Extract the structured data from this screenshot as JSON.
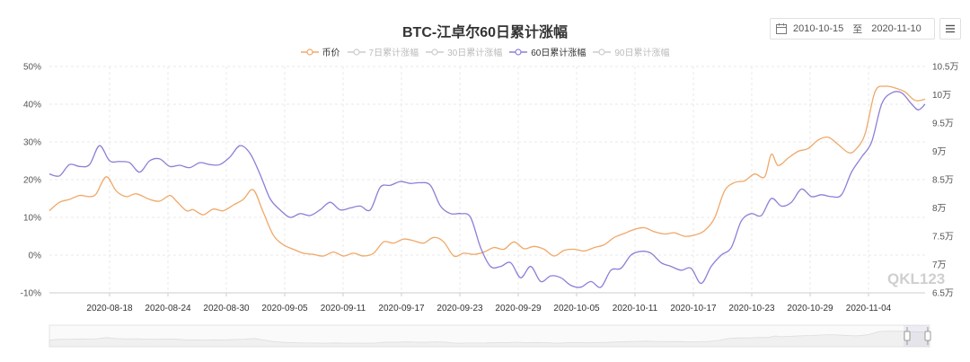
{
  "header": {
    "title": "BTC-江卓尔60日累计涨幅",
    "date_start": "2010-10-15",
    "date_sep": "至",
    "date_end": "2020-11-10"
  },
  "watermark": "QKL123",
  "colors": {
    "price": "#F0A868",
    "acc60": "#8D7FD6",
    "inactive": "#CCCCCC",
    "grid": "#E8E8E8"
  },
  "chart_data": {
    "type": "line",
    "title": "BTC-江卓尔60日累计涨幅",
    "legend": [
      {
        "name": "币价",
        "active": true
      },
      {
        "name": "7日累计涨幅",
        "active": false
      },
      {
        "name": "30日累计涨幅",
        "active": false
      },
      {
        "name": "60日累计涨幅",
        "active": true
      },
      {
        "name": "90日累计涨幅",
        "active": false
      }
    ],
    "legend_position": "top-center",
    "grid": true,
    "x_labels": [
      "2020-08-18",
      "2020-08-24",
      "2020-08-30",
      "2020-09-05",
      "2020-09-11",
      "2020-09-17",
      "2020-09-23",
      "2020-09-29",
      "2020-10-05",
      "2020-10-11",
      "2020-10-17",
      "2020-10-23",
      "2020-10-29",
      "2020-11-04"
    ],
    "y_left": {
      "labels": [
        "50%",
        "40%",
        "30%",
        "20%",
        "10%",
        "0%",
        "-10%"
      ],
      "range": [
        -10,
        50
      ]
    },
    "y_right": {
      "labels": [
        "10.5万",
        "10万",
        "9.5万",
        "9万",
        "8.5万",
        "8万",
        "7.5万",
        "7万",
        "6.5万"
      ],
      "range": [
        6.5,
        10.5
      ],
      "unit": "万"
    },
    "series": [
      {
        "name": "币价",
        "axis": "right",
        "points": [
          [
            0,
            7.95
          ],
          [
            3,
            8.1
          ],
          [
            6,
            8.15
          ],
          [
            9,
            8.22
          ],
          [
            12,
            8.2
          ],
          [
            14,
            8.25
          ],
          [
            17,
            8.55
          ],
          [
            20,
            8.3
          ],
          [
            23,
            8.2
          ],
          [
            26,
            8.25
          ],
          [
            30,
            8.15
          ],
          [
            33,
            8.12
          ],
          [
            36,
            8.22
          ],
          [
            38,
            8.12
          ],
          [
            41,
            7.95
          ],
          [
            43,
            7.97
          ],
          [
            46,
            7.88
          ],
          [
            49,
            7.98
          ],
          [
            52,
            7.95
          ],
          [
            55,
            8.05
          ],
          [
            58,
            8.15
          ],
          [
            61,
            8.32
          ],
          [
            64,
            7.92
          ],
          [
            67,
            7.52
          ],
          [
            70,
            7.35
          ],
          [
            73,
            7.27
          ],
          [
            76,
            7.2
          ],
          [
            79,
            7.18
          ],
          [
            82,
            7.15
          ],
          [
            85,
            7.22
          ],
          [
            88,
            7.15
          ],
          [
            91,
            7.2
          ],
          [
            94,
            7.15
          ],
          [
            97,
            7.2
          ],
          [
            100,
            7.4
          ],
          [
            103,
            7.38
          ],
          [
            106,
            7.45
          ],
          [
            109,
            7.42
          ],
          [
            112,
            7.38
          ],
          [
            115,
            7.48
          ],
          [
            118,
            7.4
          ],
          [
            121,
            7.15
          ],
          [
            124,
            7.2
          ],
          [
            127,
            7.18
          ],
          [
            130,
            7.22
          ],
          [
            133,
            7.3
          ],
          [
            136,
            7.27
          ],
          [
            139,
            7.4
          ],
          [
            142,
            7.28
          ],
          [
            145,
            7.32
          ],
          [
            148,
            7.27
          ],
          [
            151,
            7.15
          ],
          [
            154,
            7.25
          ],
          [
            157,
            7.27
          ],
          [
            160,
            7.24
          ],
          [
            163,
            7.3
          ],
          [
            166,
            7.35
          ],
          [
            169,
            7.48
          ],
          [
            172,
            7.55
          ],
          [
            175,
            7.62
          ],
          [
            178,
            7.65
          ],
          [
            181,
            7.58
          ],
          [
            184,
            7.54
          ],
          [
            187,
            7.56
          ],
          [
            190,
            7.5
          ],
          [
            193,
            7.52
          ],
          [
            196,
            7.6
          ],
          [
            199,
            7.82
          ],
          [
            202,
            8.3
          ],
          [
            205,
            8.45
          ],
          [
            208,
            8.48
          ],
          [
            211,
            8.6
          ],
          [
            214,
            8.55
          ],
          [
            216,
            8.95
          ],
          [
            218,
            8.75
          ],
          [
            221,
            8.88
          ],
          [
            224,
            9.0
          ],
          [
            227,
            9.05
          ],
          [
            230,
            9.2
          ],
          [
            233,
            9.25
          ],
          [
            236,
            9.12
          ],
          [
            239,
            8.98
          ],
          [
            241,
            9.02
          ],
          [
            244,
            9.3
          ],
          [
            247,
            10.05
          ],
          [
            250,
            10.15
          ],
          [
            253,
            10.12
          ],
          [
            256,
            10.05
          ],
          [
            259,
            9.9
          ],
          [
            262,
            9.92
          ]
        ]
      },
      {
        "name": "60日累计涨幅",
        "axis": "left",
        "points": [
          [
            0,
            21.5
          ],
          [
            3,
            21.0
          ],
          [
            6,
            24.0
          ],
          [
            9,
            23.5
          ],
          [
            12,
            24.0
          ],
          [
            15,
            29.0
          ],
          [
            18,
            25.0
          ],
          [
            21,
            24.8
          ],
          [
            24,
            24.5
          ],
          [
            27,
            22.0
          ],
          [
            30,
            25.0
          ],
          [
            33,
            25.5
          ],
          [
            36,
            23.5
          ],
          [
            39,
            23.8
          ],
          [
            42,
            23.2
          ],
          [
            45,
            24.5
          ],
          [
            48,
            24.0
          ],
          [
            51,
            24.0
          ],
          [
            54,
            26.0
          ],
          [
            57,
            29.0
          ],
          [
            60,
            27.0
          ],
          [
            63,
            21.5
          ],
          [
            66,
            15.0
          ],
          [
            69,
            12.0
          ],
          [
            72,
            10.0
          ],
          [
            75,
            11.0
          ],
          [
            78,
            10.5
          ],
          [
            81,
            12.0
          ],
          [
            84,
            14.0
          ],
          [
            87,
            12.0
          ],
          [
            90,
            12.5
          ],
          [
            93,
            13.0
          ],
          [
            96,
            12.0
          ],
          [
            99,
            18.0
          ],
          [
            102,
            18.5
          ],
          [
            105,
            19.5
          ],
          [
            108,
            19.0
          ],
          [
            111,
            19.2
          ],
          [
            114,
            18.5
          ],
          [
            117,
            13.0
          ],
          [
            120,
            11.0
          ],
          [
            123,
            11.0
          ],
          [
            126,
            10.0
          ],
          [
            129,
            2.0
          ],
          [
            132,
            -3.0
          ],
          [
            135,
            -3.0
          ],
          [
            138,
            -2.0
          ],
          [
            141,
            -6.0
          ],
          [
            144,
            -3.0
          ],
          [
            147,
            -7.0
          ],
          [
            150,
            -5.5
          ],
          [
            153,
            -6.0
          ],
          [
            156,
            -8.0
          ],
          [
            159,
            -8.5
          ],
          [
            162,
            -7.0
          ],
          [
            165,
            -8.5
          ],
          [
            168,
            -4.0
          ],
          [
            171,
            -3.5
          ],
          [
            174,
            0.0
          ],
          [
            177,
            1.0
          ],
          [
            180,
            0.5
          ],
          [
            183,
            -2.0
          ],
          [
            186,
            -3.0
          ],
          [
            189,
            -4.0
          ],
          [
            192,
            -3.5
          ],
          [
            195,
            -7.5
          ],
          [
            198,
            -3.0
          ],
          [
            201,
            0.0
          ],
          [
            204,
            2.0
          ],
          [
            207,
            9.0
          ],
          [
            210,
            11.0
          ],
          [
            213,
            10.5
          ],
          [
            216,
            15.0
          ],
          [
            219,
            13.0
          ],
          [
            222,
            14.0
          ],
          [
            225,
            17.5
          ],
          [
            228,
            15.5
          ],
          [
            231,
            16.0
          ],
          [
            234,
            15.5
          ],
          [
            237,
            16.0
          ],
          [
            240,
            22.0
          ],
          [
            243,
            26.0
          ],
          [
            246,
            30.0
          ],
          [
            249,
            40.0
          ],
          [
            252,
            43.0
          ],
          [
            255,
            43.0
          ],
          [
            258,
            40.0
          ],
          [
            260,
            38.5
          ],
          [
            262,
            40.0
          ]
        ]
      }
    ]
  }
}
